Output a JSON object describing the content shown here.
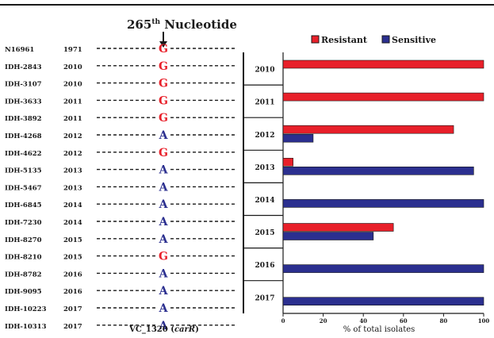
{
  "chart_data": {
    "type": "bar",
    "orientation": "horizontal",
    "title": "",
    "xlabel": "% of total isolates",
    "ylabel": "",
    "xlim": [
      0,
      100
    ],
    "xticks": [
      "0",
      "20",
      "40",
      "60",
      "80",
      "100"
    ],
    "categories": [
      "2010",
      "2011",
      "2012",
      "2013",
      "2014",
      "2015",
      "2016",
      "2017"
    ],
    "series": [
      {
        "name": "Resistant",
        "color": "#e8202a",
        "values": [
          100,
          100,
          85,
          5,
          0,
          55,
          0,
          0
        ]
      },
      {
        "name": "Sensitive",
        "color": "#2b2f8f",
        "values": [
          0,
          0,
          15,
          95,
          100,
          45,
          100,
          100
        ]
      }
    ],
    "legend_position": "top-right",
    "grid": false
  },
  "alignment": {
    "title_number": "265",
    "title_sup": "th",
    "title_rest": " Nucleotide",
    "gene_label": "VC_1320 (",
    "gene_italic": "carR",
    "gene_label_end": ")",
    "rows": [
      {
        "isolate": "N16961",
        "year": "1971",
        "nucleotide": "G"
      },
      {
        "isolate": "IDH-2843",
        "year": "2010",
        "nucleotide": "G"
      },
      {
        "isolate": "IDH-3107",
        "year": "2010",
        "nucleotide": "G"
      },
      {
        "isolate": "IDH-3633",
        "year": "2011",
        "nucleotide": "G"
      },
      {
        "isolate": "IDH-3892",
        "year": "2011",
        "nucleotide": "G"
      },
      {
        "isolate": "IDH-4268",
        "year": "2012",
        "nucleotide": "A"
      },
      {
        "isolate": "IDH-4622",
        "year": "2012",
        "nucleotide": "G"
      },
      {
        "isolate": "IDH-5135",
        "year": "2013",
        "nucleotide": "A"
      },
      {
        "isolate": "IDH-5467",
        "year": "2013",
        "nucleotide": "A"
      },
      {
        "isolate": "IDH-6845",
        "year": "2014",
        "nucleotide": "A"
      },
      {
        "isolate": "IDH-7230",
        "year": "2014",
        "nucleotide": "A"
      },
      {
        "isolate": "IDH-8270",
        "year": "2015",
        "nucleotide": "A"
      },
      {
        "isolate": "IDH-8210",
        "year": "2015",
        "nucleotide": "G"
      },
      {
        "isolate": "IDH-8782",
        "year": "2016",
        "nucleotide": "A"
      },
      {
        "isolate": "IDH-9095",
        "year": "2016",
        "nucleotide": "A"
      },
      {
        "isolate": "IDH-10223",
        "year": "2017",
        "nucleotide": "A"
      },
      {
        "isolate": "IDH-10313",
        "year": "2017",
        "nucleotide": "A"
      }
    ],
    "colors": {
      "G": "#e8202a",
      "A": "#2b2f8f",
      "text": "#1a1a1a"
    }
  }
}
